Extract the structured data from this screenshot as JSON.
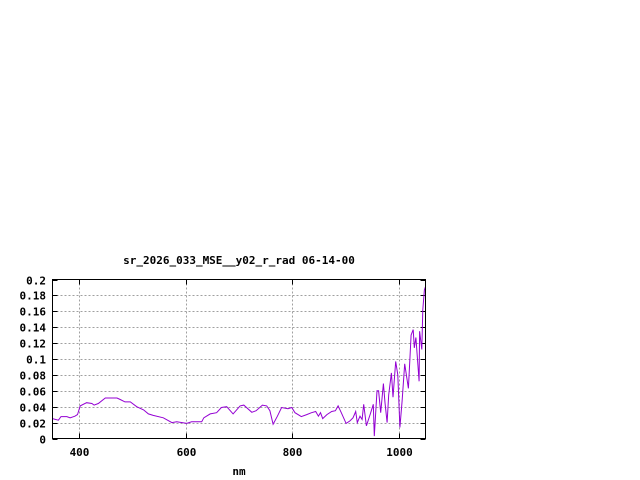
{
  "chart_data": {
    "type": "line",
    "title": "sr_2026_033_MSE__y02_r_rad 06-14-00",
    "xlabel": "nm",
    "ylabel": "",
    "xlim": [
      350,
      1050
    ],
    "ylim": [
      0,
      0.2
    ],
    "grid": true,
    "line_color": "#9400d3",
    "x_ticks": [
      400,
      600,
      800,
      1000
    ],
    "x_tick_labels": [
      "400",
      "600",
      "800",
      "1000"
    ],
    "y_ticks": [
      0,
      0.02,
      0.04,
      0.06,
      0.08,
      0.1,
      0.12,
      0.14,
      0.16,
      0.18,
      0.2
    ],
    "y_tick_labels": [
      "0",
      "0.02",
      "0.04",
      "0.06",
      "0.08",
      "0.1",
      "0.12",
      "0.14",
      "0.16",
      "0.18",
      "0.2"
    ],
    "series": [
      {
        "x": [
          350,
          361,
          366,
          377,
          383,
          392,
          397,
          402,
          414,
          424,
          428,
          436,
          449,
          471,
          477,
          486,
          496,
          508,
          521,
          530,
          539,
          558,
          574,
          583,
          602,
          611,
          630,
          634,
          646,
          658,
          667,
          677,
          689,
          702,
          709,
          724,
          732,
          744,
          752,
          758,
          764,
          772,
          780,
          792,
          799,
          805,
          817,
          827,
          836,
          844,
          849,
          853,
          857,
          865,
          874,
          881,
          886,
          892,
          901,
          908,
          914,
          919,
          922,
          927,
          931,
          934,
          939,
          946,
          952,
          954,
          959,
          962,
          966,
          971,
          974,
          978,
          981,
          986,
          989,
          994,
          998,
          1002,
          1006,
          1011,
          1018,
          1023,
          1027,
          1029,
          1032,
          1038,
          1039,
          1043,
          1045,
          1048,
          1050
        ],
        "y": [
          0.025,
          0.023,
          0.0275,
          0.0275,
          0.026,
          0.028,
          0.03,
          0.041,
          0.045,
          0.044,
          0.042,
          0.044,
          0.051,
          0.051,
          0.049,
          0.046,
          0.046,
          0.04,
          0.036,
          0.031,
          0.029,
          0.026,
          0.02,
          0.021,
          0.019,
          0.021,
          0.021,
          0.026,
          0.031,
          0.0325,
          0.039,
          0.04,
          0.031,
          0.041,
          0.042,
          0.033,
          0.035,
          0.042,
          0.041,
          0.035,
          0.018,
          0.028,
          0.039,
          0.0375,
          0.039,
          0.0325,
          0.0275,
          0.03,
          0.0325,
          0.034,
          0.028,
          0.0325,
          0.025,
          0.03,
          0.034,
          0.035,
          0.041,
          0.0325,
          0.019,
          0.022,
          0.026,
          0.034,
          0.02,
          0.028,
          0.024,
          0.043,
          0.016,
          0.03,
          0.043,
          0.003,
          0.06,
          0.06,
          0.0325,
          0.069,
          0.045,
          0.02,
          0.055,
          0.0825,
          0.052,
          0.097,
          0.08,
          0.014,
          0.047,
          0.094,
          0.063,
          0.13,
          0.137,
          0.114,
          0.127,
          0.072,
          0.135,
          0.112,
          0.162,
          0.187,
          0.191
        ]
      }
    ]
  }
}
